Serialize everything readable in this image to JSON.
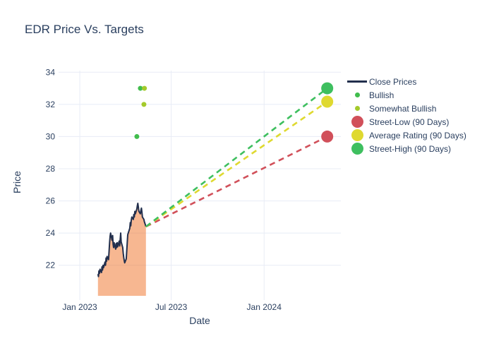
{
  "title": "EDR Price Vs. Targets",
  "chart_data": {
    "type": "line",
    "title": "EDR Price Vs. Targets",
    "xlabel": "Date",
    "ylabel": "Price",
    "grid": true,
    "grid_color": "#e8ecf6",
    "text_color": "#2a3f5f",
    "background": "#ffffff",
    "y_range": [
      20.1,
      34.1
    ],
    "x_range": [
      "2022-11-20",
      "2024-06-01"
    ],
    "y_ticks": [
      22,
      24,
      26,
      28,
      30,
      32,
      34
    ],
    "x_ticks": [
      {
        "label": "Jan 2023",
        "date": "2023-01-01"
      },
      {
        "label": "Jul 2023",
        "date": "2023-07-01"
      },
      {
        "label": "Jan 2024",
        "date": "2024-01-01"
      }
    ],
    "close_prices": {
      "name": "Close Prices",
      "line_color": "#222f4d",
      "fill_color": "rgba(238,105,26,0.48)",
      "dates": [
        "2023-02-06",
        "2023-02-07",
        "2023-02-08",
        "2023-02-09",
        "2023-02-10",
        "2023-02-13",
        "2023-02-14",
        "2023-02-15",
        "2023-02-16",
        "2023-02-17",
        "2023-02-20",
        "2023-02-21",
        "2023-02-22",
        "2023-02-23",
        "2023-02-24",
        "2023-02-27",
        "2023-02-28",
        "2023-03-01",
        "2023-03-02",
        "2023-03-03",
        "2023-03-06",
        "2023-03-07",
        "2023-03-08",
        "2023-03-09",
        "2023-03-10",
        "2023-03-13",
        "2023-03-14",
        "2023-03-15",
        "2023-03-16",
        "2023-03-17",
        "2023-03-20",
        "2023-03-21",
        "2023-03-22",
        "2023-03-23",
        "2023-03-24",
        "2023-03-27",
        "2023-03-28",
        "2023-03-29",
        "2023-03-30",
        "2023-03-31",
        "2023-04-03",
        "2023-04-04",
        "2023-04-05",
        "2023-04-06",
        "2023-04-10",
        "2023-04-11",
        "2023-04-12",
        "2023-04-13",
        "2023-04-14",
        "2023-04-17",
        "2023-04-18",
        "2023-04-19",
        "2023-04-20",
        "2023-04-21",
        "2023-04-24",
        "2023-04-25",
        "2023-04-26",
        "2023-04-27",
        "2023-04-28",
        "2023-05-01",
        "2023-05-02",
        "2023-05-03",
        "2023-05-04",
        "2023-05-05",
        "2023-05-08",
        "2023-05-09",
        "2023-05-10",
        "2023-05-11",
        "2023-05-12"
      ],
      "values": [
        21.45,
        21.3,
        21.65,
        21.5,
        21.75,
        21.55,
        21.9,
        21.7,
        22.0,
        21.85,
        22.2,
        22.0,
        22.45,
        22.25,
        22.55,
        22.35,
        22.9,
        23.4,
        23.8,
        24.0,
        23.55,
        23.85,
        23.3,
        23.1,
        23.4,
        23.0,
        23.35,
        23.1,
        23.4,
        23.15,
        23.5,
        23.2,
        23.6,
        24.0,
        23.45,
        23.1,
        22.75,
        22.5,
        22.3,
        22.15,
        22.4,
        22.9,
        23.4,
        23.9,
        24.3,
        24.65,
        24.45,
        24.8,
        25.0,
        24.85,
        25.15,
        25.0,
        25.35,
        25.2,
        25.5,
        25.7,
        25.85,
        25.6,
        25.35,
        25.2,
        25.4,
        25.55,
        25.3,
        25.0,
        24.85,
        24.7,
        24.6,
        24.5,
        24.4
      ]
    },
    "ratings": [
      {
        "name": "Bullish",
        "color": "#41bd4d",
        "points": [
          {
            "date": "2023-04-24",
            "value": 30
          },
          {
            "date": "2023-05-01",
            "value": 33
          }
        ]
      },
      {
        "name": "Somewhat Bullish",
        "color": "#a4ca2b",
        "points": [
          {
            "date": "2023-05-08",
            "value": 32
          },
          {
            "date": "2023-05-09",
            "value": 33
          }
        ]
      }
    ],
    "projection_start": {
      "date": "2023-05-12",
      "value": 24.4
    },
    "target_date": "2024-05-05",
    "targets": [
      {
        "name": "Street-Low (90 Days)",
        "color": "#d1505a",
        "value": 30.0
      },
      {
        "name": "Average Rating (90 Days)",
        "color": "#dfd930",
        "value": 32.17
      },
      {
        "name": "Street-High (90 Days)",
        "color": "#3ebf5f",
        "value": 33.0
      }
    ],
    "legend": [
      {
        "label": "Close Prices",
        "marker": "line",
        "color": "#222f4d"
      },
      {
        "label": "Bullish",
        "marker": "dot-small",
        "color": "#41bd4d"
      },
      {
        "label": "Somewhat Bullish",
        "marker": "dot-small",
        "color": "#a4ca2b"
      },
      {
        "label": "Street-Low (90 Days)",
        "marker": "dot-large",
        "color": "#d1505a"
      },
      {
        "label": "Average Rating (90 Days)",
        "marker": "dot-large",
        "color": "#dfd930"
      },
      {
        "label": "Street-High (90 Days)",
        "marker": "dot-large",
        "color": "#3ebf5f"
      }
    ]
  }
}
